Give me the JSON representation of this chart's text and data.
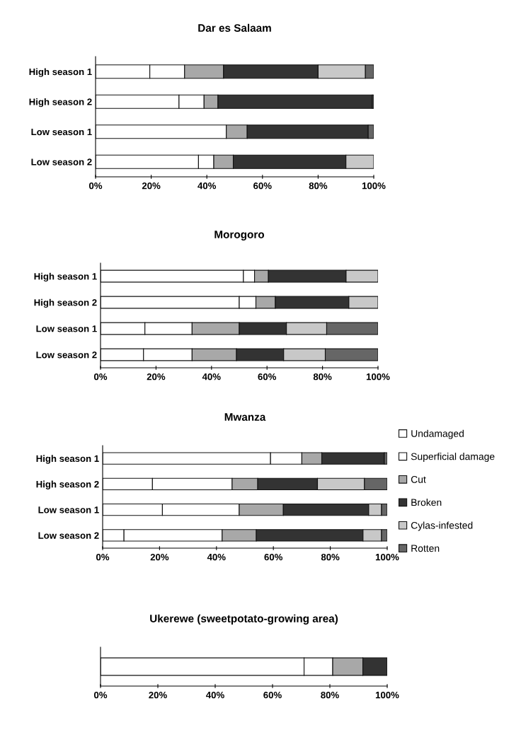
{
  "chart_data": [
    {
      "type": "bar",
      "title": "Dar es Salaam",
      "orientation": "horizontal",
      "stacked": true,
      "categories": [
        "High season 1",
        "High season 2",
        "Low season 1",
        "Low season 2"
      ],
      "xlim": [
        0,
        100
      ],
      "xticks": [
        {
          "value": 0,
          "label": "0%"
        },
        {
          "value": 20,
          "label": "20%"
        },
        {
          "value": 40,
          "label": "40%"
        },
        {
          "value": 60,
          "label": "60%"
        },
        {
          "value": 80,
          "label": "80%"
        },
        {
          "value": 100,
          "label": "100%"
        }
      ],
      "grid": false,
      "legend": false,
      "series": [
        {
          "color": "#ffffff",
          "values": [
            19.5,
            30,
            47,
            37
          ]
        },
        {
          "color": "#ffffff",
          "values": [
            12.5,
            9,
            0,
            5.5
          ]
        },
        {
          "color": "#a8a8a8",
          "values": [
            14,
            5,
            7.5,
            7
          ]
        },
        {
          "color": "#333333",
          "values": [
            34,
            55.5,
            43.5,
            40.5
          ]
        },
        {
          "color": "#c8c8c8",
          "values": [
            17,
            0,
            0,
            10
          ]
        },
        {
          "color": "#666666",
          "values": [
            3,
            0.5,
            2,
            0
          ]
        }
      ]
    },
    {
      "type": "bar",
      "title": "Morogoro",
      "orientation": "horizontal",
      "stacked": true,
      "categories": [
        "High season 1",
        "High season 2",
        "Low season 1",
        "Low season 2"
      ],
      "xlim": [
        0,
        100
      ],
      "xticks": [
        {
          "value": 0,
          "label": "0%"
        },
        {
          "value": 20,
          "label": "20%"
        },
        {
          "value": 40,
          "label": "40%"
        },
        {
          "value": 60,
          "label": "60%"
        },
        {
          "value": 80,
          "label": "80%"
        },
        {
          "value": 100,
          "label": "100%"
        }
      ],
      "grid": false,
      "legend": false,
      "series": [
        {
          "color": "#ffffff",
          "values": [
            51.5,
            50,
            16,
            15.5
          ]
        },
        {
          "color": "#ffffff",
          "values": [
            4,
            6,
            17,
            17.5
          ]
        },
        {
          "color": "#a8a8a8",
          "values": [
            5,
            7,
            17,
            16
          ]
        },
        {
          "color": "#333333",
          "values": [
            28,
            26.5,
            17,
            17
          ]
        },
        {
          "color": "#c8c8c8",
          "values": [
            11.5,
            10.5,
            14.5,
            15
          ]
        },
        {
          "color": "#666666",
          "values": [
            0,
            0,
            18.5,
            19
          ]
        }
      ]
    },
    {
      "type": "bar",
      "title": "Mwanza",
      "orientation": "horizontal",
      "stacked": true,
      "categories": [
        "High season 1",
        "High season 2",
        "Low season 1",
        "Low season 2"
      ],
      "xlim": [
        0,
        100
      ],
      "xticks": [
        {
          "value": 0,
          "label": "0%"
        },
        {
          "value": 20,
          "label": "20%"
        },
        {
          "value": 40,
          "label": "40%"
        },
        {
          "value": 60,
          "label": "60%"
        },
        {
          "value": 80,
          "label": "80%"
        },
        {
          "value": 100,
          "label": "100%"
        }
      ],
      "grid": false,
      "legend": "right",
      "series": [
        {
          "name": "Undamaged",
          "color": "#ffffff",
          "values": [
            59,
            17.5,
            21,
            7.5
          ]
        },
        {
          "name": "Superficial damage",
          "color": "#ffffff",
          "values": [
            11,
            28,
            27,
            34.5
          ]
        },
        {
          "name": "Cut",
          "color": "#a8a8a8",
          "values": [
            7,
            9,
            15.5,
            12
          ]
        },
        {
          "name": "Broken",
          "color": "#333333",
          "values": [
            22,
            21,
            30,
            37.5
          ]
        },
        {
          "name": "Cylas-infested",
          "color": "#c8c8c8",
          "values": [
            0,
            16.5,
            4.5,
            6.5
          ]
        },
        {
          "name": "Rotten",
          "color": "#666666",
          "values": [
            1,
            8,
            2,
            2
          ]
        }
      ]
    },
    {
      "type": "bar",
      "title": "Ukerewe (sweetpotato-growing area)",
      "orientation": "horizontal",
      "stacked": true,
      "categories": [
        null
      ],
      "xlim": [
        0,
        100
      ],
      "xticks": [
        {
          "value": 0,
          "label": "0%"
        },
        {
          "value": 20,
          "label": "20%"
        },
        {
          "value": 40,
          "label": "40%"
        },
        {
          "value": 60,
          "label": "60%"
        },
        {
          "value": 80,
          "label": "80%"
        },
        {
          "value": 100,
          "label": "100%"
        }
      ],
      "grid": false,
      "legend": false,
      "series": [
        {
          "color": "#ffffff",
          "values": [
            71
          ]
        },
        {
          "color": "#ffffff",
          "values": [
            10
          ]
        },
        {
          "color": "#a8a8a8",
          "values": [
            10.5
          ]
        },
        {
          "color": "#333333",
          "values": [
            8.5
          ]
        },
        {
          "color": "#c8c8c8",
          "values": [
            0
          ]
        },
        {
          "color": "#666666",
          "values": [
            0
          ]
        }
      ]
    }
  ]
}
